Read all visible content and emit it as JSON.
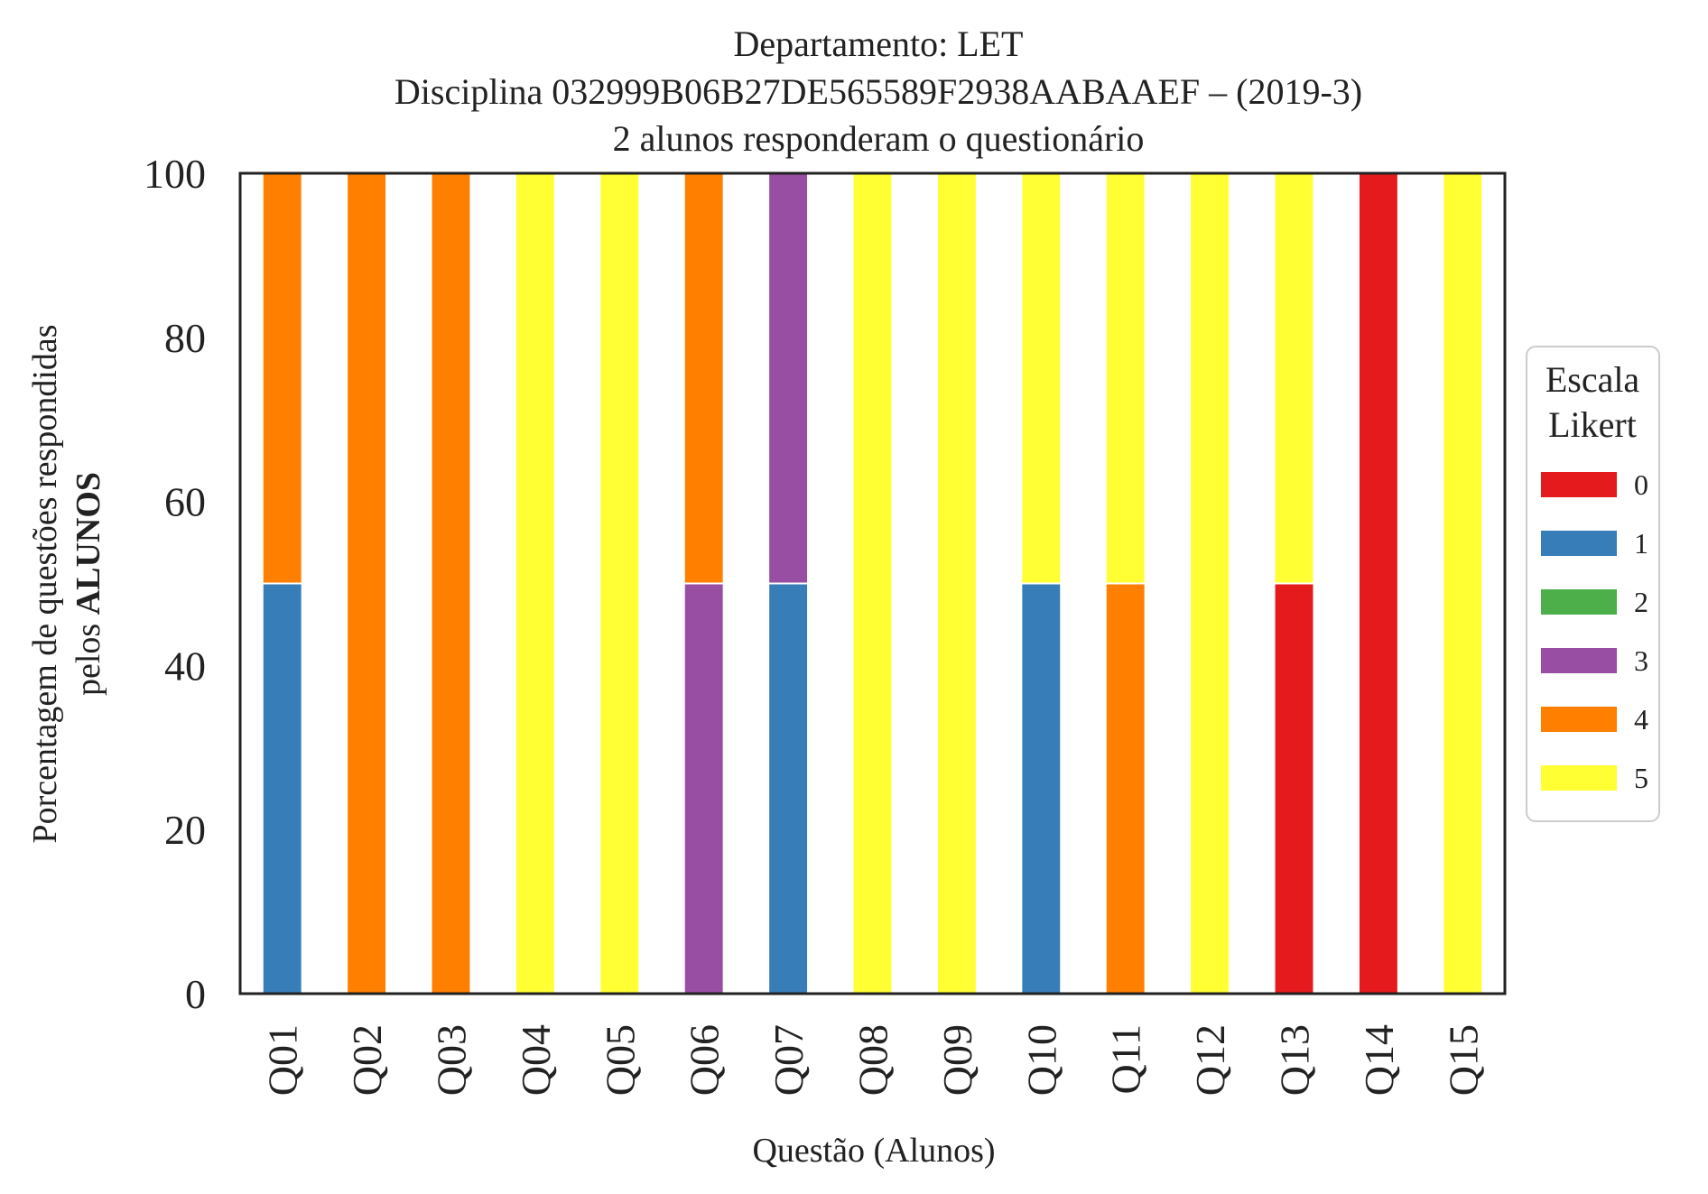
{
  "chart_data": {
    "type": "bar",
    "stacked": true,
    "title_lines": [
      "Departamento: LET",
      "Disciplina 032999B06B27DE565589F2938AABAAEF – (2019-3)",
      "2 alunos responderam o questionário"
    ],
    "xlabel": "Questão (Alunos)",
    "ylabel_line1": "Porcentagem de questões respondidas",
    "ylabel_line2_prefix": "pelos ",
    "ylabel_line2_bold": "ALUNOS",
    "ylim": [
      0,
      100
    ],
    "yticks": [
      "0",
      "20",
      "40",
      "60",
      "80",
      "100"
    ],
    "categories": [
      "Q01",
      "Q02",
      "Q03",
      "Q04",
      "Q05",
      "Q06",
      "Q07",
      "Q08",
      "Q09",
      "Q10",
      "Q11",
      "Q12",
      "Q13",
      "Q14",
      "Q15"
    ],
    "legend": {
      "title_lines": [
        "Escala",
        "Likert"
      ],
      "placement": "right"
    },
    "series": [
      {
        "name": "0",
        "color": "#e41a1c",
        "values": [
          0,
          0,
          0,
          0,
          0,
          0,
          0,
          0,
          0,
          0,
          0,
          0,
          50,
          100,
          0
        ]
      },
      {
        "name": "1",
        "color": "#377eb8",
        "values": [
          50,
          0,
          0,
          0,
          0,
          0,
          50,
          0,
          0,
          50,
          0,
          0,
          0,
          0,
          0
        ]
      },
      {
        "name": "2",
        "color": "#4daf4a",
        "values": [
          0,
          0,
          0,
          0,
          0,
          0,
          0,
          0,
          0,
          0,
          0,
          0,
          0,
          0,
          0
        ]
      },
      {
        "name": "3",
        "color": "#984ea3",
        "values": [
          0,
          0,
          0,
          0,
          0,
          50,
          50,
          0,
          0,
          0,
          0,
          0,
          0,
          0,
          0
        ]
      },
      {
        "name": "4",
        "color": "#ff7f00",
        "values": [
          50,
          100,
          100,
          0,
          0,
          50,
          0,
          0,
          0,
          0,
          50,
          0,
          0,
          0,
          0
        ]
      },
      {
        "name": "5",
        "color": "#ffff33",
        "values": [
          0,
          0,
          0,
          100,
          100,
          0,
          0,
          100,
          100,
          50,
          50,
          100,
          50,
          0,
          100
        ]
      }
    ]
  }
}
